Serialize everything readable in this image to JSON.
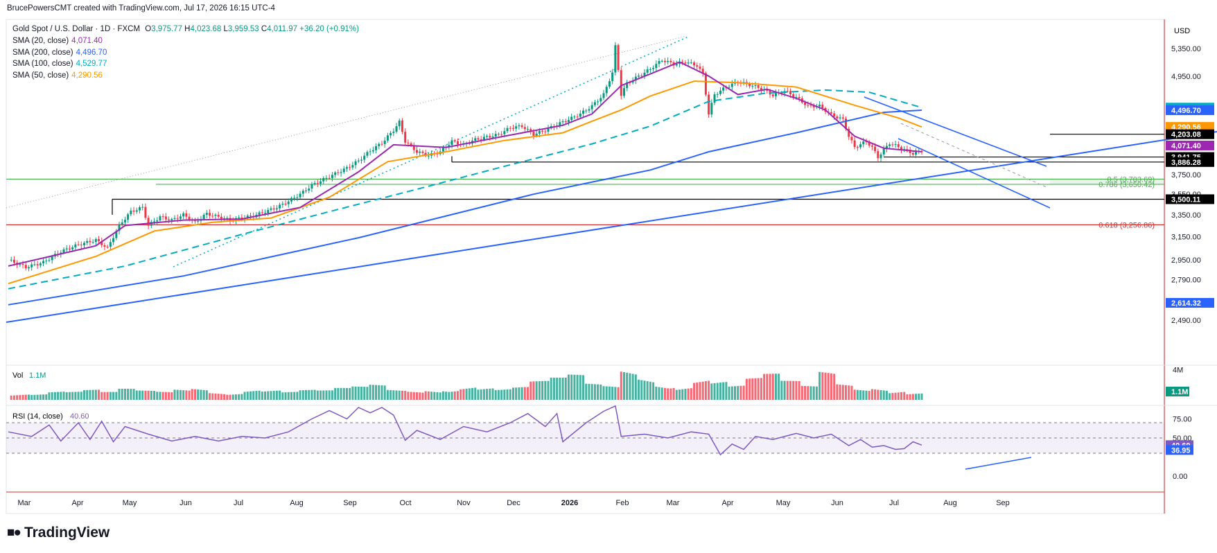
{
  "header": {
    "attribution": "BrucePowersCMT created with TradingView.com, Jul 17, 2026 16:15 UTC-4"
  },
  "legend": {
    "symbol_line": "Gold Spot / U.S. Dollar · 1D · FXCM",
    "ohlc": {
      "o_label": "O",
      "o": "3,975.77",
      "h_label": "H",
      "h": "4,023.68",
      "l_label": "L",
      "l": "3,959.53",
      "c_label": "C",
      "c": "4,011.97",
      "change": "+36.20 (+0.91%)"
    },
    "sma": [
      {
        "label": "SMA (20, close)",
        "value": "4,071.40",
        "color": "#9c27b0"
      },
      {
        "label": "SMA (200, close)",
        "value": "4,496.70",
        "color": "#2962ff"
      },
      {
        "label": "SMA (100, close)",
        "value": "4,529.77",
        "color": "#00acc1"
      },
      {
        "label": "SMA (50, close)",
        "value": "4,290.56",
        "color": "#ff9800"
      }
    ]
  },
  "currency": "USD",
  "vol_label": "Vol",
  "vol_value": "1.1M",
  "rsi_label": "RSI (14, close)",
  "rsi_value": "40.60",
  "brand": "TradingView",
  "chart_data": {
    "type": "candlestick",
    "price_axis": {
      "ticks": [
        "5,350.00",
        "4,950.00",
        "3,750.00",
        "3,550.00",
        "3,350.00",
        "3,150.00",
        "2,950.00",
        "2,790.00",
        "2,490.00"
      ],
      "tick_values": [
        5350,
        4950,
        3750,
        3550,
        3350,
        3150,
        2950,
        2790,
        2490
      ],
      "badges": [
        {
          "text": "4,529.77",
          "value": 4529.77,
          "color": "#00acc1"
        },
        {
          "text": "4,496.70",
          "value": 4496.7,
          "color": "#2962ff"
        },
        {
          "text": "4,290.56",
          "value": 4290.56,
          "color": "#ff9800"
        },
        {
          "text": "4,203.08",
          "value": 4203.08,
          "color": "#000000"
        },
        {
          "text": "4,071.40",
          "value": 4071.4,
          "color": "#9c27b0"
        },
        {
          "text": "3,941.75",
          "value": 3941.75,
          "color": "#000000"
        },
        {
          "text": "3,886.28",
          "value": 3886.28,
          "color": "#000000"
        },
        {
          "text": "3,500.11",
          "value": 3500.11,
          "color": "#000000"
        },
        {
          "text": "2,614.32",
          "value": 2614.32,
          "color": "#2962ff"
        }
      ]
    },
    "time_axis": [
      "Mar",
      "Apr",
      "May",
      "Jun",
      "Jul",
      "Aug",
      "Sep",
      "Oct",
      "Nov",
      "Dec",
      "2026",
      "Feb",
      "Mar",
      "Apr",
      "May",
      "Jun",
      "Jul",
      "Aug",
      "Sep"
    ],
    "fib_levels": [
      {
        "label": "0.5 (3,703.69)",
        "value": 3703.69,
        "color": "#4caf50"
      },
      {
        "label": "0.786 (3,650.42)",
        "value": 3650.42,
        "color": "#4caf50"
      },
      {
        "label": "0.618 (3,256.86)",
        "value": 3256.86,
        "color": "#d32f2f"
      }
    ],
    "horizontal_levels": [
      4203.08,
      3941.75,
      3886.28,
      3500.11
    ],
    "volume_axis": {
      "ticks": [
        "4M"
      ],
      "tick_values": [
        4
      ],
      "badge": "1.1M"
    },
    "rsi_axis": {
      "ticks": [
        "75.00",
        "50.00",
        "0.00"
      ],
      "tick_values": [
        75,
        50,
        0
      ],
      "badges": [
        {
          "text": "40.60",
          "color": "#7e57c2"
        },
        {
          "text": "36.95",
          "color": "#2962ff"
        }
      ]
    },
    "close_path": [
      [
        0,
        2950
      ],
      [
        6,
        2890
      ],
      [
        12,
        2930
      ],
      [
        18,
        3020
      ],
      [
        24,
        3080
      ],
      [
        30,
        3120
      ],
      [
        34,
        3050
      ],
      [
        38,
        3250
      ],
      [
        42,
        3380
      ],
      [
        46,
        3420
      ],
      [
        48,
        3250
      ],
      [
        52,
        3330
      ],
      [
        56,
        3300
      ],
      [
        60,
        3350
      ],
      [
        64,
        3280
      ],
      [
        68,
        3360
      ],
      [
        72,
        3330
      ],
      [
        76,
        3300
      ],
      [
        80,
        3320
      ],
      [
        84,
        3340
      ],
      [
        88,
        3380
      ],
      [
        92,
        3420
      ],
      [
        96,
        3480
      ],
      [
        100,
        3550
      ],
      [
        104,
        3640
      ],
      [
        108,
        3700
      ],
      [
        112,
        3760
      ],
      [
        116,
        3820
      ],
      [
        120,
        3900
      ],
      [
        124,
        4010
      ],
      [
        128,
        4100
      ],
      [
        132,
        4250
      ],
      [
        134,
        4350
      ],
      [
        136,
        4120
      ],
      [
        140,
        4000
      ],
      [
        144,
        3960
      ],
      [
        148,
        4000
      ],
      [
        152,
        4120
      ],
      [
        156,
        4080
      ],
      [
        160,
        4140
      ],
      [
        164,
        4170
      ],
      [
        168,
        4200
      ],
      [
        172,
        4280
      ],
      [
        176,
        4300
      ],
      [
        180,
        4200
      ],
      [
        184,
        4250
      ],
      [
        188,
        4320
      ],
      [
        192,
        4380
      ],
      [
        196,
        4450
      ],
      [
        200,
        4550
      ],
      [
        204,
        4700
      ],
      [
        207,
        5000
      ],
      [
        208,
        5380
      ],
      [
        210,
        4700
      ],
      [
        212,
        4850
      ],
      [
        216,
        4950
      ],
      [
        220,
        5050
      ],
      [
        224,
        5180
      ],
      [
        228,
        5120
      ],
      [
        232,
        5150
      ],
      [
        236,
        5100
      ],
      [
        238,
        4980
      ],
      [
        240,
        4450
      ],
      [
        242,
        4700
      ],
      [
        246,
        4800
      ],
      [
        250,
        4870
      ],
      [
        254,
        4830
      ],
      [
        258,
        4780
      ],
      [
        262,
        4690
      ],
      [
        266,
        4750
      ],
      [
        270,
        4660
      ],
      [
        274,
        4550
      ],
      [
        278,
        4550
      ],
      [
        282,
        4440
      ],
      [
        286,
        4380
      ],
      [
        288,
        4180
      ],
      [
        290,
        4050
      ],
      [
        294,
        4120
      ],
      [
        296,
        4050
      ],
      [
        298,
        3940
      ],
      [
        302,
        4100
      ],
      [
        306,
        4040
      ],
      [
        310,
        3980
      ],
      [
        313,
        4012
      ]
    ],
    "sma20_path": [
      [
        0,
        2900
      ],
      [
        30,
        3070
      ],
      [
        40,
        3250
      ],
      [
        60,
        3300
      ],
      [
        80,
        3310
      ],
      [
        100,
        3420
      ],
      [
        120,
        3780
      ],
      [
        132,
        4080
      ],
      [
        150,
        4050
      ],
      [
        170,
        4180
      ],
      [
        190,
        4310
      ],
      [
        200,
        4450
      ],
      [
        210,
        4820
      ],
      [
        220,
        4980
      ],
      [
        230,
        5150
      ],
      [
        240,
        4950
      ],
      [
        250,
        4700
      ],
      [
        260,
        4770
      ],
      [
        270,
        4650
      ],
      [
        280,
        4500
      ],
      [
        290,
        4180
      ],
      [
        300,
        4040
      ],
      [
        313,
        4000
      ]
    ],
    "sma50_path": [
      [
        0,
        2760
      ],
      [
        30,
        2980
      ],
      [
        50,
        3200
      ],
      [
        70,
        3280
      ],
      [
        90,
        3320
      ],
      [
        110,
        3520
      ],
      [
        130,
        3890
      ],
      [
        150,
        4000
      ],
      [
        170,
        4130
      ],
      [
        190,
        4220
      ],
      [
        200,
        4360
      ],
      [
        210,
        4500
      ],
      [
        220,
        4680
      ],
      [
        235,
        4880
      ],
      [
        250,
        4860
      ],
      [
        270,
        4800
      ],
      [
        290,
        4560
      ],
      [
        305,
        4400
      ],
      [
        313,
        4290
      ]
    ],
    "sma100_path": [
      [
        0,
        2720
      ],
      [
        40,
        2900
      ],
      [
        80,
        3170
      ],
      [
        110,
        3380
      ],
      [
        140,
        3600
      ],
      [
        170,
        3840
      ],
      [
        200,
        4090
      ],
      [
        220,
        4300
      ],
      [
        240,
        4610
      ],
      [
        260,
        4720
      ],
      [
        280,
        4760
      ],
      [
        295,
        4730
      ],
      [
        313,
        4530
      ]
    ],
    "sma200_path": [
      [
        0,
        2600
      ],
      [
        60,
        2820
      ],
      [
        120,
        3140
      ],
      [
        180,
        3550
      ],
      [
        220,
        3800
      ],
      [
        240,
        4000
      ],
      [
        270,
        4220
      ],
      [
        300,
        4470
      ],
      [
        313,
        4497
      ]
    ],
    "rsi_path": [
      [
        0,
        58
      ],
      [
        8,
        52
      ],
      [
        14,
        67
      ],
      [
        18,
        46
      ],
      [
        24,
        70
      ],
      [
        28,
        48
      ],
      [
        32,
        72
      ],
      [
        36,
        45
      ],
      [
        40,
        65
      ],
      [
        48,
        55
      ],
      [
        56,
        46
      ],
      [
        64,
        52
      ],
      [
        72,
        46
      ],
      [
        80,
        52
      ],
      [
        88,
        50
      ],
      [
        96,
        58
      ],
      [
        104,
        75
      ],
      [
        110,
        86
      ],
      [
        116,
        75
      ],
      [
        120,
        90
      ],
      [
        124,
        83
      ],
      [
        128,
        90
      ],
      [
        132,
        80
      ],
      [
        136,
        47
      ],
      [
        140,
        60
      ],
      [
        148,
        48
      ],
      [
        156,
        65
      ],
      [
        164,
        58
      ],
      [
        172,
        70
      ],
      [
        178,
        82
      ],
      [
        184,
        65
      ],
      [
        188,
        82
      ],
      [
        190,
        45
      ],
      [
        198,
        70
      ],
      [
        204,
        85
      ],
      [
        208,
        92
      ],
      [
        210,
        52
      ],
      [
        218,
        55
      ],
      [
        226,
        50
      ],
      [
        234,
        58
      ],
      [
        240,
        55
      ],
      [
        244,
        28
      ],
      [
        248,
        42
      ],
      [
        252,
        35
      ],
      [
        256,
        52
      ],
      [
        262,
        48
      ],
      [
        270,
        56
      ],
      [
        276,
        50
      ],
      [
        282,
        55
      ],
      [
        288,
        40
      ],
      [
        292,
        48
      ],
      [
        296,
        38
      ],
      [
        300,
        40
      ],
      [
        304,
        35
      ],
      [
        307,
        36
      ],
      [
        310,
        45
      ],
      [
        313,
        40.6
      ]
    ],
    "volume_bars_mln": [
      1.0,
      0.9,
      1.2,
      1.1,
      1.3,
      1.0,
      1.4,
      1.2,
      1.1,
      1.5,
      1.8,
      1.3,
      1.2,
      1.6,
      1.4,
      1.1,
      1.3,
      1.2,
      1.5,
      1.7,
      2.0,
      1.4,
      1.3,
      1.6,
      1.9,
      2.2,
      1.8,
      1.5,
      1.7,
      2.4,
      2.8,
      3.2,
      2.1,
      1.9,
      4.3,
      3.5,
      2.7,
      2.2,
      3.1,
      2.6,
      1.9,
      2.8,
      3.3,
      2.4,
      1.8,
      3.8,
      2.3,
      1.7,
      2.1,
      1.6,
      1.1
    ]
  }
}
